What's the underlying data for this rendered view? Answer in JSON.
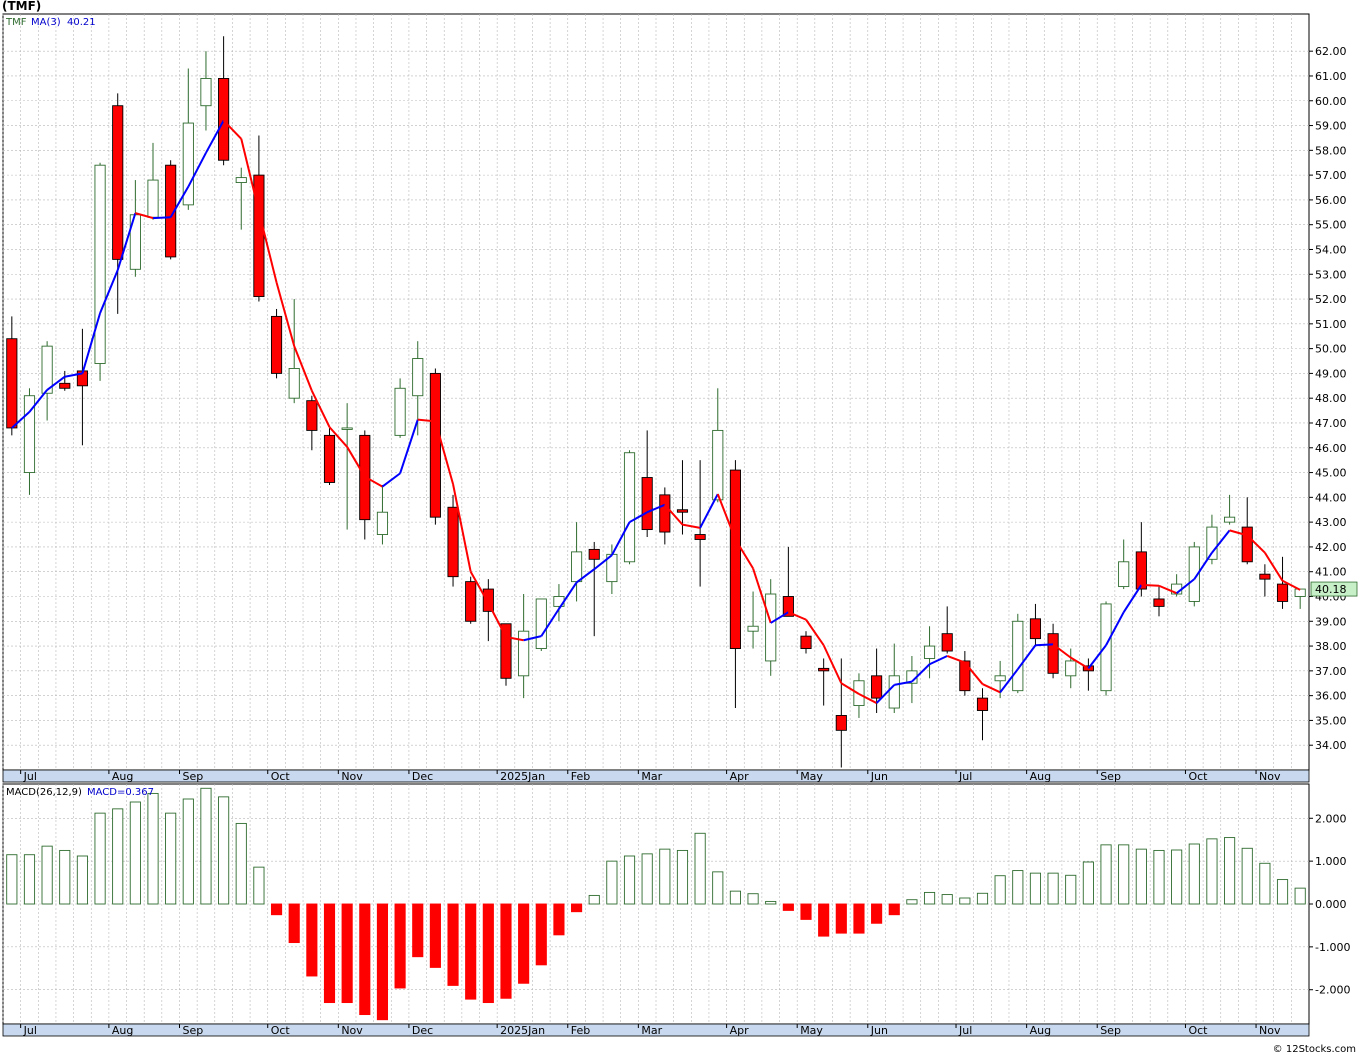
{
  "header": {
    "title": "(TMF)"
  },
  "footer": {
    "credit": "© 12Stocks.com"
  },
  "colors": {
    "up": "#2e6b2e",
    "down": "#ff0000",
    "ma_up": "#0000ff",
    "ma_down": "#ff0000",
    "grid": "#b8b8b8",
    "axis_band": "#c8d8ee"
  },
  "chart_data": [
    {
      "type": "candlestick",
      "timeframe": "weekly",
      "legend": {
        "symbol": "TMF",
        "ma_label": "MA(3)",
        "ma_value": "40.21"
      },
      "last_price_label": "40.18",
      "ylim": [
        33.0,
        63.5
      ],
      "yticks": [
        34,
        35,
        36,
        37,
        38,
        39,
        40,
        41,
        42,
        43,
        44,
        45,
        46,
        47,
        48,
        49,
        50,
        51,
        52,
        53,
        54,
        55,
        56,
        57,
        58,
        59,
        60,
        61,
        62
      ],
      "ytick_labels": [
        "34.00",
        "35.00",
        "36.00",
        "37.00",
        "38.00",
        "39.00",
        "40.00",
        "41.00",
        "42.00",
        "43.00",
        "44.00",
        "45.00",
        "46.00",
        "47.00",
        "48.00",
        "49.00",
        "50.00",
        "51.00",
        "52.00",
        "53.00",
        "54.00",
        "55.00",
        "56.00",
        "57.00",
        "58.00",
        "59.00",
        "60.00",
        "61.00",
        "62.00"
      ],
      "month_labels": [
        "Jul",
        "Aug",
        "Sep",
        "Oct",
        "Nov",
        "Dec",
        "2025Jan",
        "Feb",
        "Mar",
        "Apr",
        "May",
        "Jun",
        "Jul",
        "Aug",
        "Sep",
        "Oct",
        "Nov"
      ],
      "month_week_index": [
        1,
        6,
        10,
        15,
        19,
        23,
        28,
        32,
        36,
        41,
        45,
        49,
        54,
        58,
        62,
        67,
        71
      ],
      "ohlc": [
        [
          50.4,
          51.3,
          46.5,
          46.8
        ],
        [
          45.0,
          48.4,
          44.1,
          48.1
        ],
        [
          48.2,
          50.3,
          47.1,
          50.1
        ],
        [
          48.6,
          49.1,
          48.3,
          48.4
        ],
        [
          49.1,
          50.8,
          46.1,
          48.5
        ],
        [
          49.4,
          57.5,
          48.7,
          57.4
        ],
        [
          59.8,
          60.3,
          51.4,
          53.6
        ],
        [
          53.2,
          56.8,
          52.9,
          55.4
        ],
        [
          55.3,
          58.3,
          55.2,
          56.8
        ],
        [
          57.4,
          57.6,
          53.6,
          53.7
        ],
        [
          55.8,
          61.3,
          55.6,
          59.1
        ],
        [
          59.8,
          62.0,
          58.8,
          60.9
        ],
        [
          60.9,
          62.6,
          57.4,
          57.6
        ],
        [
          56.7,
          57.3,
          54.8,
          56.9
        ],
        [
          57.0,
          58.6,
          51.9,
          52.1
        ],
        [
          51.3,
          51.6,
          48.8,
          49.0
        ],
        [
          48.0,
          52.0,
          47.8,
          49.2
        ],
        [
          47.9,
          48.1,
          45.9,
          46.7
        ],
        [
          46.5,
          46.8,
          44.5,
          44.6
        ],
        [
          46.8,
          47.8,
          42.7,
          46.8
        ],
        [
          46.5,
          46.7,
          42.3,
          43.1
        ],
        [
          42.5,
          44.5,
          42.1,
          43.4
        ],
        [
          46.5,
          48.8,
          46.4,
          48.4
        ],
        [
          48.1,
          50.3,
          46.5,
          49.6
        ],
        [
          49.0,
          49.2,
          42.9,
          43.2
        ],
        [
          43.6,
          44.1,
          40.4,
          40.8
        ],
        [
          40.6,
          40.8,
          38.9,
          39.0
        ],
        [
          40.3,
          40.7,
          38.2,
          39.4
        ],
        [
          38.9,
          38.9,
          36.4,
          36.7
        ],
        [
          36.8,
          40.1,
          35.9,
          38.6
        ],
        [
          37.9,
          39.9,
          37.8,
          39.9
        ],
        [
          39.6,
          40.5,
          39.0,
          40.0
        ],
        [
          40.6,
          43.0,
          39.8,
          41.8
        ],
        [
          41.9,
          42.2,
          38.4,
          41.5
        ],
        [
          40.6,
          42.1,
          40.1,
          41.7
        ],
        [
          41.4,
          45.9,
          41.3,
          45.8
        ],
        [
          44.8,
          46.7,
          42.4,
          42.7
        ],
        [
          44.1,
          44.4,
          42.1,
          42.6
        ],
        [
          43.5,
          45.5,
          42.5,
          43.4
        ],
        [
          42.5,
          45.5,
          40.4,
          42.3
        ],
        [
          43.9,
          48.4,
          43.8,
          46.7
        ],
        [
          45.1,
          45.5,
          35.5,
          37.9
        ],
        [
          38.6,
          40.2,
          37.9,
          38.8
        ],
        [
          37.4,
          40.7,
          36.8,
          40.1
        ],
        [
          40.0,
          42.0,
          39.3,
          39.2
        ],
        [
          38.4,
          38.6,
          37.7,
          37.9
        ],
        [
          37.1,
          37.5,
          35.6,
          37.0
        ],
        [
          35.2,
          37.5,
          33.1,
          34.6
        ],
        [
          35.6,
          36.9,
          35.1,
          36.6
        ],
        [
          36.8,
          37.9,
          35.3,
          35.9
        ],
        [
          35.5,
          38.1,
          35.3,
          36.8
        ],
        [
          36.5,
          37.6,
          35.7,
          37.0
        ],
        [
          37.5,
          38.8,
          36.7,
          38.0
        ],
        [
          38.5,
          39.6,
          37.7,
          37.8
        ],
        [
          37.4,
          37.8,
          36.0,
          36.2
        ],
        [
          35.9,
          36.3,
          34.2,
          35.4
        ],
        [
          36.6,
          37.4,
          35.9,
          36.8
        ],
        [
          36.2,
          39.3,
          36.1,
          39.0
        ],
        [
          39.1,
          39.7,
          38.0,
          38.3
        ],
        [
          38.5,
          38.9,
          36.7,
          36.9
        ],
        [
          36.8,
          37.9,
          36.3,
          37.4
        ],
        [
          37.2,
          37.5,
          36.2,
          37.0
        ],
        [
          36.2,
          39.8,
          36.0,
          39.7
        ],
        [
          40.4,
          42.3,
          40.3,
          41.4
        ],
        [
          41.8,
          43.0,
          40.0,
          40.3
        ],
        [
          39.9,
          40.4,
          39.2,
          39.6
        ],
        [
          40.1,
          40.9,
          40.0,
          40.5
        ],
        [
          39.8,
          42.2,
          39.6,
          42.0
        ],
        [
          41.5,
          43.3,
          41.3,
          42.8
        ],
        [
          43.0,
          44.1,
          42.9,
          43.2
        ],
        [
          42.8,
          44.0,
          41.3,
          41.4
        ],
        [
          40.9,
          41.3,
          40.0,
          40.7
        ],
        [
          40.5,
          41.6,
          39.5,
          39.8
        ],
        [
          40.0,
          40.3,
          39.5,
          40.3
        ]
      ]
    },
    {
      "type": "bar",
      "legend": {
        "label": "MACD(26,12,9)",
        "value_label": "MACD=0.367"
      },
      "ylim": [
        -2.8,
        2.8
      ],
      "yticks": [
        -2.0,
        -1.0,
        0.0,
        1.0,
        2.0
      ],
      "ytick_labels": [
        "-2.000",
        "-1.000",
        "0.000",
        "1.000",
        "2.000"
      ],
      "month_labels": [
        "Jul",
        "Aug",
        "Sep",
        "Oct",
        "Nov",
        "Dec",
        "2025Jan",
        "Feb",
        "Mar",
        "Apr",
        "May",
        "Jun",
        "Jul",
        "Aug",
        "Sep",
        "Oct",
        "Nov"
      ],
      "values": [
        1.15,
        1.15,
        1.35,
        1.25,
        1.12,
        2.12,
        2.22,
        2.38,
        2.58,
        2.12,
        2.45,
        2.7,
        2.5,
        1.88,
        0.86,
        -0.25,
        -0.9,
        -1.68,
        -2.3,
        -2.3,
        -2.58,
        -2.7,
        -1.96,
        -1.23,
        -1.48,
        -1.9,
        -2.22,
        -2.3,
        -2.2,
        -1.85,
        -1.42,
        -0.72,
        -0.18,
        0.2,
        1.0,
        1.12,
        1.17,
        1.28,
        1.25,
        1.65,
        0.75,
        0.3,
        0.24,
        0.06,
        -0.15,
        -0.36,
        -0.75,
        -0.68,
        -0.68,
        -0.45,
        -0.25,
        0.1,
        0.27,
        0.22,
        0.14,
        0.25,
        0.66,
        0.78,
        0.72,
        0.72,
        0.67,
        0.98,
        1.38,
        1.38,
        1.28,
        1.25,
        1.26,
        1.4,
        1.52,
        1.55,
        1.3,
        0.95,
        0.57,
        0.37
      ]
    }
  ]
}
